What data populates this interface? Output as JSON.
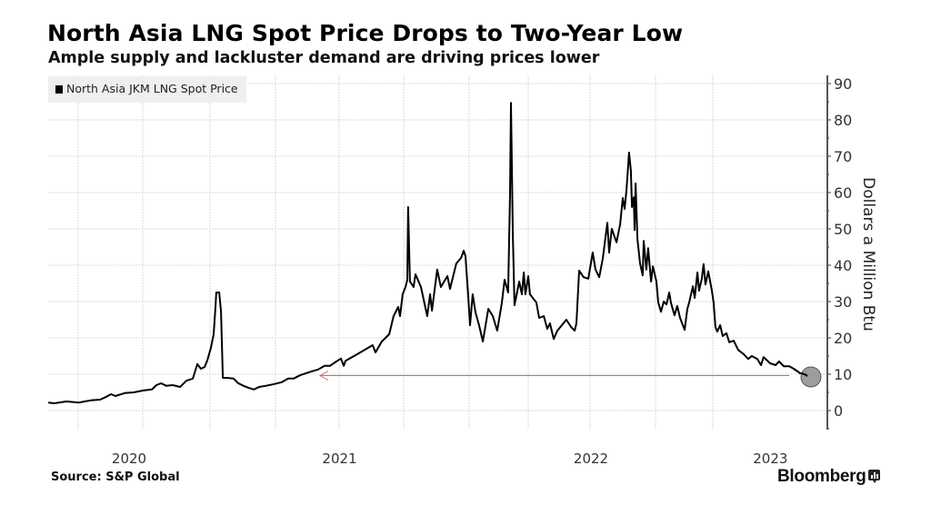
{
  "title": "North Asia LNG Spot Price Drops to Two-Year Low",
  "subtitle": "Ample supply and lackluster demand are driving prices lower",
  "source": "Source: S&P Global",
  "brand": "Bloomberg",
  "brand_icon": "bloomberg-chart-icon",
  "colors": {
    "line": "#000000",
    "grid": "#d9d9d9",
    "axis": "#555555",
    "arrow": "#e06060",
    "marker_fill": "#8c8c8c",
    "marker_stroke": "#555555",
    "legend_bg": "#efefef"
  },
  "chart_data": {
    "type": "line",
    "title": "North Asia LNG Spot Price Drops to Two-Year Low",
    "subtitle": "Ample supply and lackluster demand are driving prices lower",
    "xlabel": "",
    "ylabel": "Dollars a Million Btu",
    "x_unit": "fractional year",
    "ylim": [
      -5,
      92
    ],
    "yticks": [
      0,
      10,
      20,
      30,
      40,
      50,
      60,
      70,
      80,
      90
    ],
    "ytick_labels": [
      "0",
      "10",
      "20",
      "30",
      "40",
      "50",
      "60",
      "70",
      "80",
      "90"
    ],
    "y_axis_side": "right",
    "xtick_labels": [
      "2020",
      "2021",
      "2022",
      "2023"
    ],
    "grid": true,
    "legend": {
      "position": "top-left",
      "entries": [
        "North Asia JKM LNG Spot Price"
      ]
    },
    "series": [
      {
        "name": "North Asia JKM LNG Spot Price",
        "points": [
          [
            2020.384,
            2.2
          ],
          [
            2020.408,
            2.0
          ],
          [
            2020.454,
            2.5
          ],
          [
            2020.504,
            2.2
          ],
          [
            2020.525,
            2.5
          ],
          [
            2020.549,
            2.8
          ],
          [
            2020.585,
            3.0
          ],
          [
            2020.609,
            3.8
          ],
          [
            2020.627,
            4.5
          ],
          [
            2020.644,
            4.0
          ],
          [
            2020.68,
            4.8
          ],
          [
            2020.715,
            5.0
          ],
          [
            2020.75,
            5.5
          ],
          [
            2020.784,
            5.8
          ],
          [
            2020.801,
            7.0
          ],
          [
            2020.818,
            7.5
          ],
          [
            2020.838,
            6.8
          ],
          [
            2020.861,
            7.0
          ],
          [
            2020.889,
            6.5
          ],
          [
            2020.912,
            8.2
          ],
          [
            2020.936,
            8.8
          ],
          [
            2020.953,
            12.8
          ],
          [
            2020.966,
            11.5
          ],
          [
            2020.98,
            12.0
          ],
          [
            2020.99,
            13.8
          ],
          [
            2021.003,
            17.2
          ],
          [
            2021.014,
            21.0
          ],
          [
            2021.021,
            28.5
          ],
          [
            2021.024,
            32.5
          ],
          [
            2021.035,
            32.5
          ],
          [
            2021.042,
            27.2
          ],
          [
            2021.049,
            9.0
          ],
          [
            2021.066,
            9.0
          ],
          [
            2021.09,
            8.8
          ],
          [
            2021.108,
            7.5
          ],
          [
            2021.128,
            6.8
          ],
          [
            2021.146,
            6.3
          ],
          [
            2021.167,
            5.8
          ],
          [
            2021.188,
            6.5
          ],
          [
            2021.212,
            6.8
          ],
          [
            2021.24,
            7.2
          ],
          [
            2021.275,
            7.8
          ],
          [
            2021.3,
            8.8
          ],
          [
            2021.321,
            8.8
          ],
          [
            2021.346,
            9.7
          ],
          [
            2021.371,
            10.3
          ],
          [
            2021.393,
            10.8
          ],
          [
            2021.418,
            11.3
          ],
          [
            2021.443,
            12.3
          ],
          [
            2021.464,
            12.3
          ],
          [
            2021.489,
            13.5
          ],
          [
            2021.507,
            14.3
          ],
          [
            2021.518,
            12.3
          ],
          [
            2021.525,
            13.7
          ],
          [
            2021.57,
            15.5
          ],
          [
            2021.606,
            17.0
          ],
          [
            2021.63,
            18.0
          ],
          [
            2021.641,
            16.0
          ],
          [
            2021.665,
            19.0
          ],
          [
            2021.694,
            21.0
          ],
          [
            2021.711,
            26.0
          ],
          [
            2021.729,
            28.5
          ],
          [
            2021.736,
            26.0
          ],
          [
            2021.746,
            32.0
          ],
          [
            2021.757,
            34.0
          ],
          [
            2021.764,
            36.0
          ],
          [
            2021.767,
            56.0
          ],
          [
            2021.774,
            35.5
          ],
          [
            2021.788,
            34.0
          ],
          [
            2021.795,
            37.5
          ],
          [
            2021.816,
            34.0
          ],
          [
            2021.84,
            26.0
          ],
          [
            2021.851,
            32.0
          ],
          [
            2021.858,
            27.5
          ],
          [
            2021.878,
            38.8
          ],
          [
            2021.892,
            34.0
          ],
          [
            2021.917,
            37.0
          ],
          [
            2021.927,
            33.5
          ],
          [
            2021.951,
            40.5
          ],
          [
            2021.969,
            42.0
          ],
          [
            2021.979,
            44.0
          ],
          [
            2021.986,
            42.5
          ],
          [
            2021.997,
            31.0
          ],
          [
            2022.004,
            23.5
          ],
          [
            2022.015,
            32.0
          ],
          [
            2022.027,
            27.0
          ],
          [
            2022.042,
            23.5
          ],
          [
            2022.058,
            19.0
          ],
          [
            2022.081,
            28.0
          ],
          [
            2022.1,
            26.0
          ],
          [
            2022.119,
            22.0
          ],
          [
            2022.138,
            29.5
          ],
          [
            2022.15,
            36.0
          ],
          [
            2022.165,
            32.5
          ],
          [
            2022.173,
            60.0
          ],
          [
            2022.177,
            84.7
          ],
          [
            2022.185,
            48.0
          ],
          [
            2022.192,
            29.0
          ],
          [
            2022.212,
            35.5
          ],
          [
            2022.223,
            32.0
          ],
          [
            2022.231,
            38.0
          ],
          [
            2022.238,
            32.0
          ],
          [
            2022.25,
            37.0
          ],
          [
            2022.257,
            32.0
          ],
          [
            2022.283,
            29.7
          ],
          [
            2022.294,
            25.5
          ],
          [
            2022.313,
            26.0
          ],
          [
            2022.327,
            22.5
          ],
          [
            2022.338,
            24.0
          ],
          [
            2022.353,
            19.7
          ],
          [
            2022.368,
            22.0
          ],
          [
            2022.386,
            23.5
          ],
          [
            2022.404,
            25.0
          ],
          [
            2022.423,
            23.0
          ],
          [
            2022.438,
            22.0
          ],
          [
            2022.445,
            24.0
          ],
          [
            2022.456,
            38.5
          ],
          [
            2022.474,
            36.7
          ],
          [
            2022.493,
            36.3
          ],
          [
            2022.51,
            43.5
          ],
          [
            2022.521,
            38.8
          ],
          [
            2022.535,
            36.7
          ],
          [
            2022.549,
            42.0
          ],
          [
            2022.566,
            51.7
          ],
          [
            2022.573,
            43.5
          ],
          [
            2022.583,
            50.0
          ],
          [
            2022.601,
            46.3
          ],
          [
            2022.615,
            51.3
          ],
          [
            2022.625,
            58.5
          ],
          [
            2022.632,
            55.5
          ],
          [
            2022.639,
            60.5
          ],
          [
            2022.649,
            71.0
          ],
          [
            2022.656,
            66.0
          ],
          [
            2022.66,
            56.0
          ],
          [
            2022.667,
            58.7
          ],
          [
            2022.67,
            49.7
          ],
          [
            2022.674,
            62.5
          ],
          [
            2022.681,
            47.2
          ],
          [
            2022.691,
            40.5
          ],
          [
            2022.701,
            37.2
          ],
          [
            2022.705,
            46.7
          ],
          [
            2022.715,
            38.8
          ],
          [
            2022.722,
            44.7
          ],
          [
            2022.733,
            35.5
          ],
          [
            2022.74,
            39.7
          ],
          [
            2022.754,
            35.5
          ],
          [
            2022.762,
            29.7
          ],
          [
            2022.774,
            27.2
          ],
          [
            2022.786,
            30.0
          ],
          [
            2022.798,
            29.2
          ],
          [
            2022.81,
            32.5
          ],
          [
            2022.817,
            29.7
          ],
          [
            2022.833,
            26.2
          ],
          [
            2022.845,
            28.8
          ],
          [
            2022.857,
            25.5
          ],
          [
            2022.877,
            22.2
          ],
          [
            2022.889,
            28.0
          ],
          [
            2022.897,
            29.7
          ],
          [
            2022.913,
            34.2
          ],
          [
            2022.921,
            31.0
          ],
          [
            2022.933,
            38.0
          ],
          [
            2022.94,
            33.0
          ],
          [
            2022.952,
            36.3
          ],
          [
            2022.96,
            40.3
          ],
          [
            2022.968,
            34.7
          ],
          [
            2022.98,
            38.3
          ],
          [
            2022.996,
            33.0
          ],
          [
            2023.003,
            29.7
          ],
          [
            2023.01,
            23.0
          ],
          [
            2023.017,
            21.7
          ],
          [
            2023.028,
            23.5
          ],
          [
            2023.038,
            20.5
          ],
          [
            2023.052,
            21.3
          ],
          [
            2023.063,
            18.8
          ],
          [
            2023.08,
            19.2
          ],
          [
            2023.097,
            16.7
          ],
          [
            2023.118,
            15.5
          ],
          [
            2023.135,
            14.2
          ],
          [
            2023.149,
            15.0
          ],
          [
            2023.17,
            14.2
          ],
          [
            2023.184,
            12.5
          ],
          [
            2023.194,
            14.7
          ],
          [
            2023.219,
            13.0
          ],
          [
            2023.24,
            12.5
          ],
          [
            2023.253,
            13.5
          ],
          [
            2023.271,
            12.2
          ],
          [
            2023.292,
            12.2
          ],
          [
            2023.309,
            11.5
          ],
          [
            2023.333,
            10.3
          ],
          [
            2023.351,
            10.0
          ],
          [
            2023.361,
            9.5
          ]
        ]
      }
    ],
    "annotations": [
      {
        "type": "arrow",
        "value": 9.5,
        "from_x": 2023.292,
        "to_x": 2021.425,
        "meaning": "reference level of latest price"
      },
      {
        "type": "circle-marker",
        "x": 2023.361,
        "value": 9.5
      }
    ]
  }
}
